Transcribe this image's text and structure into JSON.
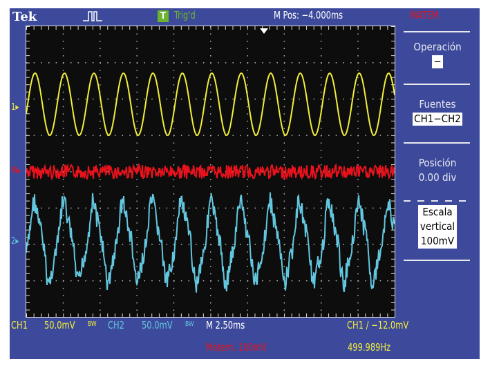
{
  "header": {
    "brand": "Tek",
    "trigger_badge": "T",
    "trigger_status": "Trig'd",
    "position": "M Pos: −4.000ms",
    "menu_title": "MATEM."
  },
  "menu": {
    "operation_label": "Operación",
    "operation_value": "−",
    "sources_label": "Fuentes",
    "sources_value": "CH1−CH2",
    "position_label": "Posición",
    "position_value": "0.00 div",
    "scale_label_1": "Escala",
    "scale_label_2": "vertical",
    "scale_value": "100mV"
  },
  "footer": {
    "ch1": "CH1",
    "ch1_scale": "50.0mV",
    "ch1_bw": "BW",
    "ch2": "CH2",
    "ch2_scale": "50.0mV",
    "ch2_bw": "BW",
    "timebase": "M 2.50ms",
    "trigger": "CH1 ∕ −12.0mV",
    "math": "Matem. 100mV",
    "frequency": "499.989Hz"
  },
  "markers": {
    "ch1": "1▸",
    "math": "M▸",
    "ch2": "2▸"
  },
  "colors": {
    "ch1": "#f2ee3a",
    "ch2": "#63c6df",
    "math": "#e8121c",
    "background": "#3d4a9b",
    "trig_badge": "#6ab42e"
  }
}
